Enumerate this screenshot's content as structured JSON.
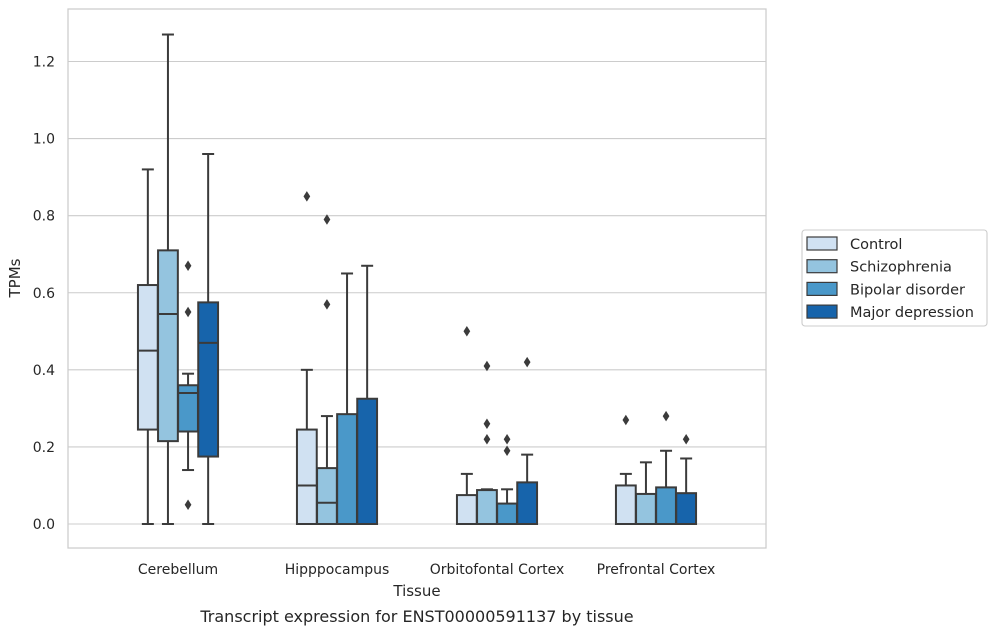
{
  "caption": "Transcript expression for ENST00000591137 by tissue",
  "chart_data": {
    "type": "box",
    "xlabel": "Tissue",
    "ylabel": "TPMs",
    "ylim": [
      -0.06,
      1.34
    ],
    "yticks": [
      0.0,
      0.2,
      0.4,
      0.6,
      0.8,
      1.0,
      1.2
    ],
    "ytick_labels": [
      "0.0",
      "0.2",
      "0.4",
      "0.6",
      "0.8",
      "1.0",
      "1.2"
    ],
    "grid": "horizontal",
    "legend_position": "right",
    "categories": [
      "Cerebellum",
      "Hipppocampus",
      "Orbitofontal Cortex",
      "Prefrontal Cortex"
    ],
    "series": [
      {
        "name": "Control",
        "color": "#d0e1f2",
        "boxes": [
          {
            "whislo": 0.0,
            "q1": 0.245,
            "med": 0.45,
            "q3": 0.62,
            "whishi": 0.92,
            "fliers": []
          },
          {
            "whislo": 0.0,
            "q1": 0.0,
            "med": 0.1,
            "q3": 0.245,
            "whishi": 0.4,
            "fliers": [
              0.85
            ]
          },
          {
            "whislo": 0.0,
            "q1": 0.0,
            "med": 0.0,
            "q3": 0.075,
            "whishi": 0.13,
            "fliers": [
              0.5
            ]
          },
          {
            "whislo": 0.0,
            "q1": 0.0,
            "med": 0.0,
            "q3": 0.1,
            "whishi": 0.13,
            "fliers": [
              0.27
            ]
          }
        ]
      },
      {
        "name": "Schizophrenia",
        "color": "#94c4df",
        "boxes": [
          {
            "whislo": 0.0,
            "q1": 0.215,
            "med": 0.545,
            "q3": 0.71,
            "whishi": 1.27,
            "fliers": []
          },
          {
            "whislo": 0.0,
            "q1": 0.0,
            "med": 0.055,
            "q3": 0.145,
            "whishi": 0.28,
            "fliers": [
              0.57,
              0.79
            ]
          },
          {
            "whislo": 0.0,
            "q1": 0.0,
            "med": 0.0,
            "q3": 0.088,
            "whishi": 0.09,
            "fliers": [
              0.22,
              0.26,
              0.41
            ]
          },
          {
            "whislo": 0.0,
            "q1": 0.0,
            "med": 0.0,
            "q3": 0.078,
            "whishi": 0.16,
            "fliers": []
          }
        ]
      },
      {
        "name": "Bipolar disorder",
        "color": "#4a98c9",
        "boxes": [
          {
            "whislo": 0.14,
            "q1": 0.24,
            "med": 0.34,
            "q3": 0.36,
            "whishi": 0.39,
            "fliers": [
              0.05,
              0.55,
              0.67
            ]
          },
          {
            "whislo": 0.0,
            "q1": 0.0,
            "med": 0.0,
            "q3": 0.285,
            "whishi": 0.65,
            "fliers": []
          },
          {
            "whislo": 0.0,
            "q1": 0.0,
            "med": 0.0,
            "q3": 0.053,
            "whishi": 0.09,
            "fliers": [
              0.19,
              0.22
            ]
          },
          {
            "whislo": 0.0,
            "q1": 0.0,
            "med": 0.0,
            "q3": 0.095,
            "whishi": 0.19,
            "fliers": [
              0.28
            ]
          }
        ]
      },
      {
        "name": "Major depression",
        "color": "#1764ab",
        "boxes": [
          {
            "whislo": 0.0,
            "q1": 0.175,
            "med": 0.47,
            "q3": 0.575,
            "whishi": 0.96,
            "fliers": []
          },
          {
            "whislo": 0.0,
            "q1": 0.0,
            "med": 0.0,
            "q3": 0.325,
            "whishi": 0.67,
            "fliers": []
          },
          {
            "whislo": 0.0,
            "q1": 0.0,
            "med": 0.0,
            "q3": 0.108,
            "whishi": 0.18,
            "fliers": [
              0.42
            ]
          },
          {
            "whislo": 0.0,
            "q1": 0.0,
            "med": 0.0,
            "q3": 0.08,
            "whishi": 0.17,
            "fliers": [
              0.22
            ]
          }
        ]
      }
    ]
  }
}
